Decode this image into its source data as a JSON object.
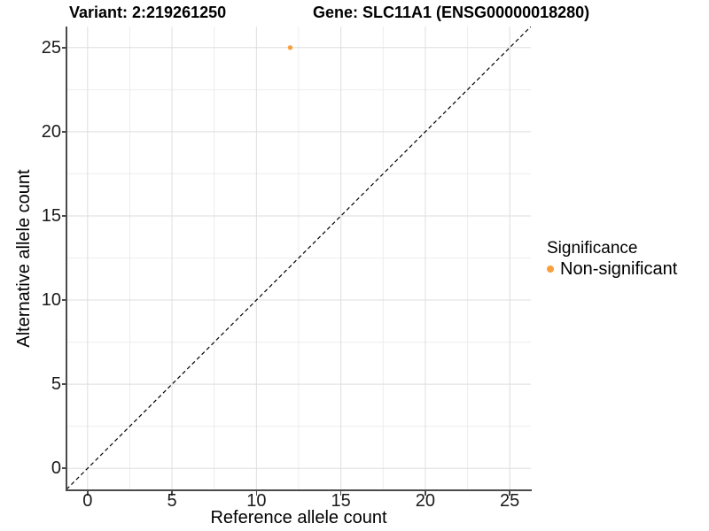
{
  "header": {
    "title_left": "Variant: 2:219261250",
    "title_right": "Gene: SLC11A1 (ENSG00000018280)"
  },
  "chart_data": {
    "type": "scatter",
    "title": "Variant: 2:219261250  Gene: SLC11A1 (ENSG00000018280)",
    "xlabel": "Reference allele count",
    "ylabel": "Alternative allele count",
    "xlim": [
      -1.25,
      26.25
    ],
    "ylim": [
      -1.25,
      26.25
    ],
    "x_ticks": [
      0,
      5,
      10,
      15,
      20,
      25
    ],
    "y_ticks": [
      0,
      5,
      10,
      15,
      20,
      25
    ],
    "x_minor_ticks": [
      2.5,
      7.5,
      12.5,
      17.5,
      22.5
    ],
    "y_minor_ticks": [
      2.5,
      7.5,
      12.5,
      17.5,
      22.5
    ],
    "grid": "major+minor",
    "series": [
      {
        "name": "Non-significant",
        "color": "#F9A03C",
        "points": [
          {
            "x": 12,
            "y": 25
          }
        ]
      }
    ],
    "reference_line": {
      "type": "identity y=x",
      "style": "dashed",
      "color": "#000000",
      "from": [
        -1.25,
        -1.25
      ],
      "to": [
        26.25,
        26.25
      ]
    },
    "legend": {
      "title": "Significance",
      "position": "right",
      "items": [
        {
          "label": "Non-significant",
          "color": "#F9A03C"
        }
      ]
    }
  },
  "colors": {
    "background": "#ffffff",
    "grid_major": "#dedede",
    "grid_minor": "#ededed",
    "axis_line": "#4a4a4a",
    "point": "#F9A03C",
    "dashed_line": "#000000",
    "text": "#000000"
  }
}
